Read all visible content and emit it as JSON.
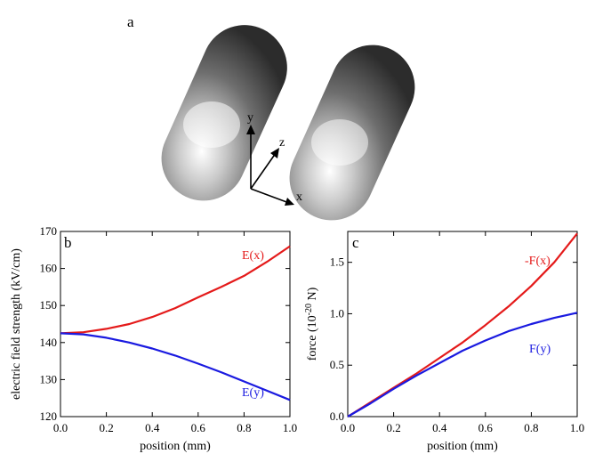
{
  "figure": {
    "panel_a": {
      "label": "a",
      "axes": {
        "x": "x",
        "y": "y",
        "z": "z"
      }
    }
  },
  "chart_data": [
    {
      "panel": "b",
      "type": "line",
      "xlabel": "position (mm)",
      "ylabel": "electric field strength (kV/cm)",
      "xlim": [
        0,
        1
      ],
      "ylim": [
        120,
        170
      ],
      "xticks": [
        "0.0",
        "0.2",
        "0.4",
        "0.6",
        "0.8",
        "1.0"
      ],
      "yticks": [
        "120",
        "130",
        "140",
        "150",
        "160",
        "170"
      ],
      "x": [
        0.0,
        0.1,
        0.2,
        0.3,
        0.4,
        0.5,
        0.6,
        0.7,
        0.8,
        0.9,
        1.0
      ],
      "series": [
        {
          "name": "E(x)",
          "color": "#e41a1a",
          "values": [
            142.5,
            142.8,
            143.7,
            145.0,
            146.9,
            149.3,
            152.2,
            155.0,
            158.0,
            161.8,
            166.0
          ]
        },
        {
          "name": "E(y)",
          "color": "#1a1ae0",
          "values": [
            142.5,
            142.2,
            141.3,
            140.0,
            138.4,
            136.5,
            134.3,
            132.0,
            129.5,
            127.0,
            124.5
          ]
        }
      ]
    },
    {
      "panel": "c",
      "type": "line",
      "xlabel": "position (mm)",
      "ylabel": "force (10",
      "ylabel_sup": "-20",
      "ylabel_end": " N)",
      "xlim": [
        0,
        1
      ],
      "ylim": [
        0,
        1.8
      ],
      "xticks": [
        "0.0",
        "0.2",
        "0.4",
        "0.6",
        "0.8",
        "1.0"
      ],
      "yticks": [
        "0.0",
        "0.5",
        "1.0",
        "1.5"
      ],
      "x": [
        0.0,
        0.1,
        0.2,
        0.3,
        0.4,
        0.5,
        0.6,
        0.7,
        0.8,
        0.9,
        1.0
      ],
      "series": [
        {
          "name": "-F(x)",
          "color": "#e41a1a",
          "values": [
            0.0,
            0.14,
            0.28,
            0.42,
            0.57,
            0.72,
            0.89,
            1.07,
            1.27,
            1.5,
            1.78
          ]
        },
        {
          "name": "F(y)",
          "color": "#1a1ae0",
          "values": [
            0.0,
            0.13,
            0.27,
            0.4,
            0.52,
            0.64,
            0.74,
            0.83,
            0.9,
            0.96,
            1.01
          ]
        }
      ]
    }
  ]
}
